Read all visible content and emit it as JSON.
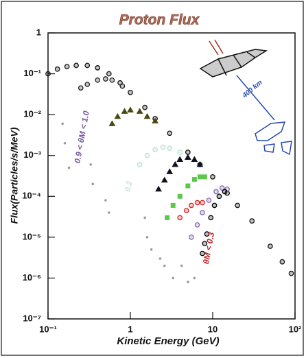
{
  "chart_data": {
    "type": "scatter",
    "title": "Proton Flux",
    "x_label": "Kinetic Energy (GeV)",
    "y_label": "Flux(Particles/s/MeV)",
    "log_x": true,
    "log_y": true,
    "xlim": [
      0.1,
      100
    ],
    "ylim": [
      1e-07,
      1
    ],
    "xticks": [
      {
        "value": 0.1,
        "label": "10⁻¹"
      },
      1,
      10,
      {
        "value": 100,
        "label": "10²"
      }
    ],
    "yticks": [
      1,
      {
        "value": 0.1,
        "label": "10⁻¹"
      },
      {
        "value": 0.01,
        "label": "10⁻²"
      },
      {
        "value": 0.001,
        "label": "10⁻³"
      },
      {
        "value": 0.0001,
        "label": "10⁻⁴"
      },
      {
        "value": 1e-05,
        "label": "10⁻⁵"
      },
      {
        "value": 1e-06,
        "label": "10⁻⁶"
      },
      {
        "value": 1e-07,
        "label": "10⁻⁷"
      }
    ],
    "series": [
      {
        "color": "#111111",
        "marker": "circle",
        "x": [
          0.1,
          0.13,
          0.17,
          0.22,
          0.3,
          0.4,
          0.55,
          0.75,
          1,
          1.5,
          2,
          3,
          5,
          7,
          10,
          15,
          20,
          30,
          50,
          70,
          90
        ],
        "values": [
          0.1,
          0.13,
          0.15,
          0.16,
          0.16,
          0.14,
          0.1,
          0.06,
          0.035,
          0.015,
          0.008,
          0.0035,
          0.0012,
          0.0006,
          0.0003,
          0.00012,
          6e-05,
          2.5e-05,
          6e-06,
          2.5e-06,
          1.3e-06
        ]
      },
      {
        "color": "#222222",
        "marker": "circle",
        "x": [
          0.25,
          0.3,
          0.4,
          0.5,
          0.6,
          0.8
        ],
        "values": [
          0.045,
          0.055,
          0.07,
          0.075,
          0.07,
          0.05
        ]
      },
      {
        "color": "#4a4a10",
        "marker": "triangle",
        "x": [
          0.6,
          0.7,
          0.85,
          1,
          1.3,
          1.6,
          2
        ],
        "values": [
          0.006,
          0.009,
          0.012,
          0.013,
          0.012,
          0.009,
          0.007
        ]
      },
      {
        "color": "#bfe0d8",
        "marker": "circle",
        "x": [
          1.3,
          1.6,
          2,
          2.5,
          3,
          4
        ],
        "values": [
          0.0006,
          0.001,
          0.0014,
          0.0016,
          0.0015,
          0.0012
        ]
      },
      {
        "color": "#111122",
        "marker": "triangle",
        "x": [
          2.2,
          2.6,
          3,
          3.5,
          4,
          5,
          6,
          7
        ],
        "values": [
          0.00015,
          0.00025,
          0.0004,
          0.0006,
          0.0008,
          0.0009,
          0.0008,
          0.0006
        ]
      },
      {
        "color": "#5cc84a",
        "marker": "square",
        "x": [
          2.8,
          3.3,
          4,
          5,
          6,
          7,
          8
        ],
        "values": [
          3e-05,
          6e-05,
          0.0001,
          0.00018,
          0.00026,
          0.0003,
          0.0003
        ]
      },
      {
        "color": "#dd2222",
        "marker": "circle",
        "x": [
          4,
          4.8,
          5.5,
          6.5,
          7.5
        ],
        "values": [
          3e-05,
          4.5e-05,
          6e-05,
          7e-05,
          7e-05
        ]
      },
      {
        "color": "#8a6ab0",
        "marker": "circle",
        "x": [
          5.5,
          6.5,
          7.5,
          9,
          11,
          13,
          15
        ],
        "values": [
          1e-05,
          2e-05,
          4e-05,
          8e-05,
          0.00013,
          0.00016,
          0.00015
        ]
      },
      {
        "color": "#000000",
        "marker": "circle",
        "x": [
          7.5,
          8,
          8.5,
          9.5,
          10.5,
          12,
          14
        ],
        "values": [
          4e-06,
          7e-06,
          1.2e-05,
          3e-05,
          6e-05,
          0.0001,
          0.00013
        ]
      },
      {
        "color": "#9a9a9a",
        "marker": "dot",
        "x": [
          0.15,
          0.16,
          0.18,
          0.33,
          0.35,
          0.5,
          0.55,
          1.5,
          1.6,
          1.8,
          2.3,
          2.6,
          3.3,
          4.2,
          5,
          6
        ],
        "values": [
          0.006,
          0.002,
          0.0005,
          0.0006,
          0.0002,
          8e-05,
          4e-05,
          3e-05,
          1e-05,
          5e-06,
          3e-06,
          2e-06,
          1e-06,
          2e-06,
          8e-07,
          1e-06
        ]
      }
    ],
    "annotations": [
      "0.9 < θM < 1.0",
      "θM < 0.3",
      "0.2",
      "400 km"
    ]
  }
}
